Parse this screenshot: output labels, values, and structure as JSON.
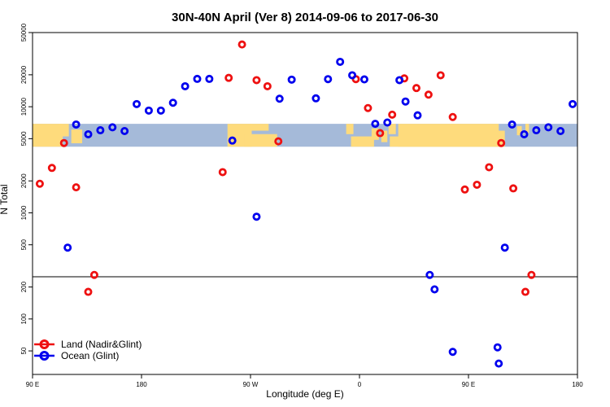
{
  "chart_data": {
    "type": "scatter",
    "title": "30N-40N April (Ver 8)   2014-09-06 to 2017-06-30",
    "xlabel": "Longitude (deg E)",
    "ylabel": "N Total",
    "x_scale": "linear",
    "y_scale": "log",
    "xlim": [
      90,
      540
    ],
    "ylim": [
      30,
      50000
    ],
    "x_ticks": [
      {
        "value": 90,
        "label": "90 E"
      },
      {
        "value": 180,
        "label": "180"
      },
      {
        "value": 270,
        "label": "90 W"
      },
      {
        "value": 360,
        "label": "0"
      },
      {
        "value": 450,
        "label": "90 E"
      },
      {
        "value": 540,
        "label": "180"
      }
    ],
    "y_ticks": [
      {
        "value": 50,
        "label": "50"
      },
      {
        "value": 100,
        "label": "100"
      },
      {
        "value": 200,
        "label": "200"
      },
      {
        "value": 500,
        "label": "500"
      },
      {
        "value": 1000,
        "label": "1000"
      },
      {
        "value": 2000,
        "label": "2000"
      },
      {
        "value": 5000,
        "label": "5000"
      },
      {
        "value": 10000,
        "label": "10000"
      },
      {
        "value": 20000,
        "label": "20000"
      },
      {
        "value": 50000,
        "label": "50000"
      }
    ],
    "reference_line": {
      "y": 250
    },
    "map_band": {
      "y_range": [
        4200,
        6900
      ],
      "ocean_color": "#a5bad9",
      "land_color": "#fedb7c"
    },
    "legend": {
      "position": "bottom-left"
    },
    "series": [
      {
        "name": "Land (Nadir&Glint)",
        "color": "#ee1111",
        "points": [
          [
            96,
            1880
          ],
          [
            106,
            2650
          ],
          [
            116,
            4550
          ],
          [
            126,
            1740
          ],
          [
            136,
            180
          ],
          [
            141,
            260
          ],
          [
            247,
            2420
          ],
          [
            252,
            18700
          ],
          [
            263,
            38600
          ],
          [
            275,
            17800
          ],
          [
            284,
            15600
          ],
          [
            293,
            4720
          ],
          [
            357,
            18200
          ],
          [
            367,
            9720
          ],
          [
            377,
            5640
          ],
          [
            387,
            8420
          ],
          [
            397,
            18500
          ],
          [
            407,
            15000
          ],
          [
            417,
            13000
          ],
          [
            427,
            19800
          ],
          [
            437,
            8000
          ],
          [
            447,
            1660
          ],
          [
            457,
            1840
          ],
          [
            467,
            2690
          ],
          [
            477,
            4550
          ],
          [
            487,
            1700
          ],
          [
            497,
            180
          ],
          [
            502,
            260
          ]
        ]
      },
      {
        "name": "Ocean (Glint)",
        "color": "#0000ee",
        "points": [
          [
            119,
            470
          ],
          [
            126,
            6800
          ],
          [
            136,
            5500
          ],
          [
            146,
            6000
          ],
          [
            156,
            6400
          ],
          [
            166,
            5900
          ],
          [
            176,
            10600
          ],
          [
            186,
            9200
          ],
          [
            196,
            9200
          ],
          [
            206,
            10900
          ],
          [
            216,
            15600
          ],
          [
            226,
            18300
          ],
          [
            236,
            18300
          ],
          [
            255,
            4800
          ],
          [
            275,
            920
          ],
          [
            294,
            11900
          ],
          [
            304,
            18000
          ],
          [
            324,
            12000
          ],
          [
            334,
            18200
          ],
          [
            344,
            26500
          ],
          [
            354,
            19800
          ],
          [
            364,
            18100
          ],
          [
            373,
            6900
          ],
          [
            383,
            7100
          ],
          [
            393,
            17800
          ],
          [
            398,
            11200
          ],
          [
            408,
            8300
          ],
          [
            418,
            260
          ],
          [
            422,
            190
          ],
          [
            437,
            49
          ],
          [
            474,
            54
          ],
          [
            475,
            38
          ],
          [
            480,
            470
          ],
          [
            486,
            6800
          ],
          [
            496,
            5500
          ],
          [
            506,
            6000
          ],
          [
            516,
            6400
          ],
          [
            526,
            5900
          ],
          [
            536,
            10600
          ]
        ]
      }
    ]
  }
}
